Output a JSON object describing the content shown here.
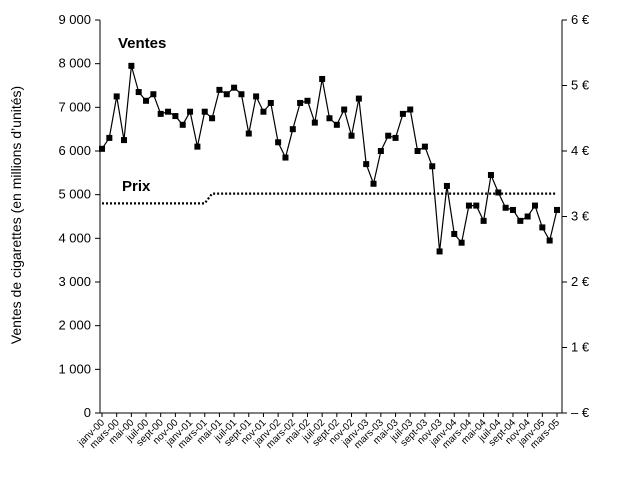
{
  "chart_data": {
    "type": "line",
    "title": "",
    "ylabel": "Ventes de cigarettes (en millions d’unités)",
    "y2label": "",
    "ylim": [
      0,
      9000
    ],
    "y2lim": [
      0,
      6
    ],
    "yticks": [
      "0",
      "1 000",
      "2 000",
      "3 000",
      "4 000",
      "5 000",
      "6 000",
      "7 000",
      "8 000",
      "9 000"
    ],
    "y2ticks": [
      "– €",
      "1 €",
      "2 €",
      "3 €",
      "4 €",
      "5 €",
      "6 €"
    ],
    "xticks": [
      "janv-00",
      "mars-00",
      "mai-00",
      "juil-00",
      "sept-00",
      "nov-00",
      "janv-01",
      "mars-01",
      "mai-01",
      "juil-01",
      "sept-01",
      "nov-01",
      "janv-02",
      "mars-02",
      "mai-02",
      "juil-02",
      "sept-02",
      "nov-02",
      "janv-03",
      "mars-03",
      "mai-03",
      "juil-03",
      "sept-03",
      "nov-03",
      "janv-04",
      "mars-04",
      "mai-04",
      "juil-04",
      "sept-04",
      "nov-04",
      "janv-05",
      "mars-05"
    ],
    "grid": false,
    "series": [
      {
        "name": "Ventes",
        "axis": "left",
        "style": "solid-square-markers",
        "color": "#000000",
        "values": [
          6050,
          6300,
          7250,
          6250,
          7950,
          7350,
          7150,
          7300,
          6850,
          6900,
          6800,
          6600,
          6900,
          6100,
          6900,
          6750,
          7400,
          7300,
          7450,
          7300,
          6400,
          7250,
          6900,
          7100,
          6200,
          5850,
          6500,
          7100,
          7150,
          6650,
          7650,
          6750,
          6600,
          6950,
          6350,
          7200,
          5700,
          5250,
          6000,
          6350,
          6300,
          6850,
          6950,
          6000,
          6100,
          5650,
          3700,
          5200,
          4100,
          3900,
          4750,
          4750,
          4400,
          5450,
          5050,
          4700,
          4650,
          4400,
          4500,
          4750,
          4250,
          3950,
          4650
        ]
      },
      {
        "name": "Prix",
        "axis": "right",
        "style": "dotted",
        "color": "#000000",
        "values": [
          3.2,
          3.2,
          3.2,
          3.2,
          3.2,
          3.2,
          3.2,
          3.2,
          3.2,
          3.2,
          3.2,
          3.2,
          3.2,
          3.2,
          3.2,
          3.35,
          3.35,
          3.35,
          3.35,
          3.35,
          3.35,
          3.35,
          3.35,
          3.35,
          3.35,
          3.35,
          3.35,
          3.35,
          3.35,
          3.35,
          3.35,
          3.35,
          3.35,
          3.35,
          3.35,
          3.35,
          3.35,
          3.35,
          3.35,
          3.35,
          3.35,
          3.35,
          3.35,
          3.35,
          3.35,
          3.35,
          3.35,
          3.35,
          3.35,
          3.35,
          3.35,
          3.35,
          3.35,
          3.35,
          3.35,
          3.35,
          3.35,
          3.35,
          3.35,
          3.35,
          3.35,
          3.35,
          3.35
        ]
      }
    ]
  }
}
